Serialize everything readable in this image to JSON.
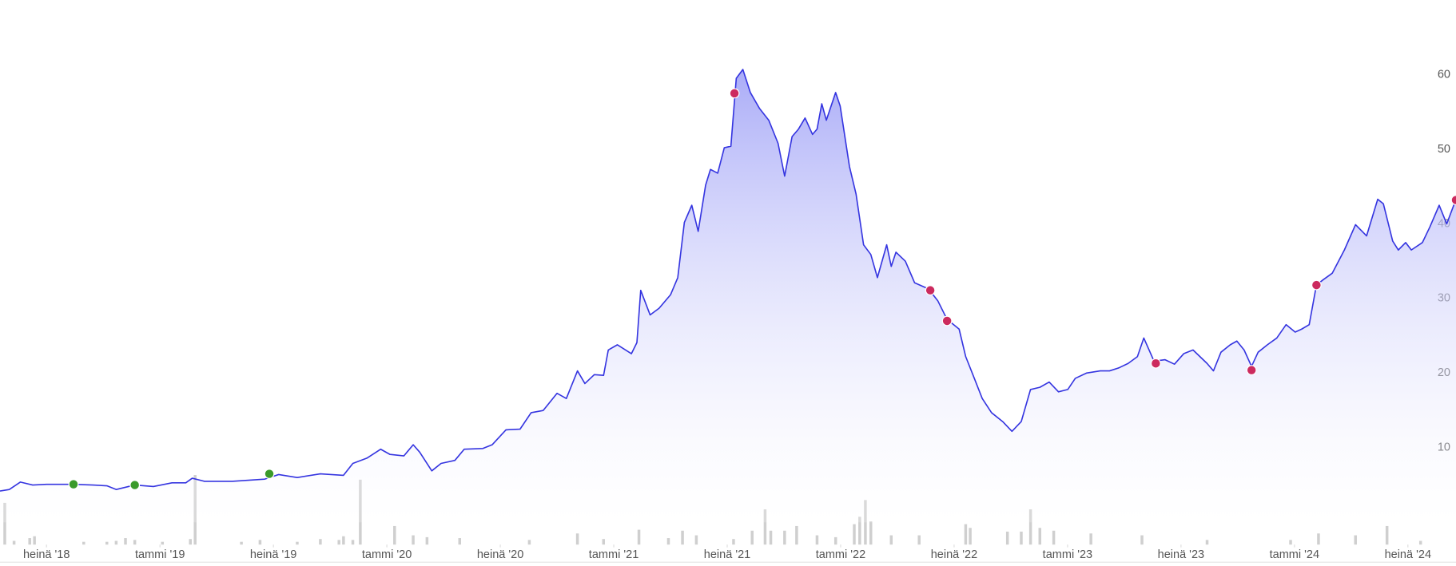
{
  "chart_data": [
    {
      "type": "line",
      "xlim": [
        2018.295,
        2024.712
      ],
      "ylim": [
        0,
        70
      ],
      "xticks": [
        {
          "value": 2018.5,
          "label": "heinä '18"
        },
        {
          "value": 2019.0,
          "label": "tammi '19"
        },
        {
          "value": 2019.5,
          "label": "heinä '19"
        },
        {
          "value": 2020.0,
          "label": "tammi '20"
        },
        {
          "value": 2020.5,
          "label": "heinä '20"
        },
        {
          "value": 2021.0,
          "label": "tammi '21"
        },
        {
          "value": 2021.5,
          "label": "heinä '21"
        },
        {
          "value": 2022.0,
          "label": "tammi '22"
        },
        {
          "value": 2022.5,
          "label": "heinä '22"
        },
        {
          "value": 2023.0,
          "label": "tammi '23"
        },
        {
          "value": 2023.5,
          "label": "heinä '23"
        },
        {
          "value": 2024.0,
          "label": "tammi '24"
        },
        {
          "value": 2024.5,
          "label": "heinä '24"
        }
      ],
      "yticks": [
        10,
        20,
        30,
        40,
        50,
        60
      ],
      "series": [
        {
          "color": "#3535e0",
          "x": [
            2018.295,
            2018.336,
            2018.385,
            2018.439,
            2018.5,
            2018.619,
            2018.705,
            2018.766,
            2018.807,
            2018.889,
            2018.971,
            2019.053,
            2019.114,
            2019.142,
            2019.196,
            2019.318,
            2019.462,
            2019.523,
            2019.605,
            2019.707,
            2019.809,
            2019.85,
            2019.912,
            2019.973,
            2020.014,
            2020.075,
            2020.116,
            2020.145,
            2020.198,
            2020.239,
            2020.3,
            2020.341,
            2020.423,
            2020.464,
            2020.525,
            2020.587,
            2020.636,
            2020.689,
            2020.75,
            2020.791,
            2020.84,
            2020.873,
            2020.914,
            2020.955,
            2020.976,
            2021.016,
            2021.078,
            2021.102,
            2021.119,
            2021.16,
            2021.2,
            2021.25,
            2021.282,
            2021.311,
            2021.344,
            2021.372,
            2021.405,
            2021.426,
            2021.458,
            2021.487,
            2021.516,
            2021.54,
            2021.569,
            2021.602,
            2021.642,
            2021.683,
            2021.724,
            2021.753,
            2021.786,
            2021.814,
            2021.843,
            2021.876,
            2021.896,
            2021.917,
            2021.937,
            2021.978,
            2021.998,
            2022.039,
            2022.068,
            2022.101,
            2022.133,
            2022.162,
            2022.203,
            2022.223,
            2022.244,
            2022.285,
            2022.326,
            2022.387,
            2022.428,
            2022.469,
            2022.522,
            2022.551,
            2022.584,
            2022.624,
            2022.665,
            2022.714,
            2022.755,
            2022.796,
            2022.837,
            2022.878,
            2022.919,
            2022.96,
            2023.001,
            2023.034,
            2023.083,
            2023.144,
            2023.185,
            2023.226,
            2023.267,
            2023.308,
            2023.336,
            2023.381,
            2023.43,
            2023.471,
            2023.512,
            2023.553,
            2023.615,
            2023.643,
            2023.676,
            2023.717,
            2023.746,
            2023.778,
            2023.811,
            2023.84,
            2023.881,
            2023.922,
            2023.963,
            2024.003,
            2024.032,
            2024.065,
            2024.097,
            2024.126,
            2024.167,
            2024.22,
            2024.269,
            2024.318,
            2024.367,
            2024.392,
            2024.433,
            2024.458,
            2024.49,
            2024.515,
            2024.564,
            2024.597,
            2024.638,
            2024.671,
            2024.712
          ],
          "values": [
            4.2,
            4.4,
            5.4,
            5.0,
            5.1,
            5.1,
            5.0,
            4.9,
            4.4,
            5.0,
            4.8,
            5.3,
            5.3,
            5.9,
            5.5,
            5.5,
            5.8,
            6.4,
            6.0,
            6.5,
            6.3,
            7.9,
            8.6,
            9.8,
            9.1,
            8.9,
            10.4,
            9.4,
            6.9,
            7.9,
            8.3,
            9.8,
            9.9,
            10.4,
            12.4,
            12.5,
            14.7,
            15.0,
            17.3,
            16.6,
            20.3,
            18.6,
            19.8,
            19.7,
            23.1,
            23.8,
            22.6,
            24.1,
            31.1,
            27.8,
            28.7,
            30.5,
            32.8,
            40.2,
            42.5,
            39.0,
            45.2,
            47.3,
            46.8,
            50.2,
            50.4,
            59.5,
            60.7,
            57.6,
            55.5,
            53.9,
            50.8,
            46.4,
            51.7,
            52.7,
            54.2,
            52.0,
            52.7,
            56.1,
            53.9,
            57.6,
            55.8,
            47.7,
            44.0,
            37.2,
            35.9,
            32.8,
            37.2,
            34.3,
            36.2,
            35.0,
            32.1,
            31.3,
            29.7,
            27.2,
            25.9,
            22.2,
            19.7,
            16.6,
            14.7,
            13.5,
            12.2,
            13.5,
            17.8,
            18.1,
            18.8,
            17.5,
            17.8,
            19.3,
            20.0,
            20.3,
            20.3,
            20.7,
            21.3,
            22.2,
            24.7,
            21.6,
            21.8,
            21.2,
            22.6,
            23.1,
            21.3,
            20.3,
            22.8,
            23.8,
            24.3,
            23.1,
            20.9,
            22.8,
            23.8,
            24.7,
            26.5,
            25.5,
            25.9,
            26.5,
            31.8,
            32.5,
            33.4,
            36.5,
            39.9,
            38.4,
            43.3,
            42.7,
            37.7,
            36.5,
            37.5,
            36.5,
            37.5,
            39.6,
            42.5,
            40.0,
            43.3
          ]
        }
      ]
    },
    {
      "type": "scatter",
      "xlim": [
        2018.295,
        2024.712
      ],
      "ylim": [
        0,
        70
      ],
      "series": [
        {
          "color": "#3a9a2a",
          "x": [
            2018.619,
            2018.889,
            2019.482
          ],
          "values": [
            5.1,
            5.0,
            6.5
          ]
        },
        {
          "color": "#cc2a5e",
          "x": [
            2021.532,
            2022.395,
            2022.469,
            2023.389,
            2023.811,
            2024.097,
            2024.712
          ],
          "values": [
            57.5,
            31.1,
            27.0,
            21.3,
            20.4,
            31.8,
            43.2
          ]
        }
      ]
    },
    {
      "type": "bar",
      "xlim": [
        2018.295,
        2024.712
      ],
      "ylim": [
        0,
        80
      ],
      "color": "#cfcfcf",
      "x": [
        2018.316,
        2018.357,
        2018.426,
        2018.447,
        2018.664,
        2018.766,
        2018.807,
        2018.848,
        2018.889,
        2019.011,
        2019.134,
        2019.155,
        2019.359,
        2019.441,
        2019.605,
        2019.707,
        2019.789,
        2019.809,
        2019.85,
        2019.883,
        2020.034,
        2020.116,
        2020.177,
        2020.321,
        2020.628,
        2020.84,
        2020.955,
        2021.111,
        2021.241,
        2021.303,
        2021.364,
        2021.528,
        2021.61,
        2021.667,
        2021.692,
        2021.753,
        2021.806,
        2021.896,
        2021.978,
        2022.06,
        2022.084,
        2022.109,
        2022.133,
        2022.223,
        2022.346,
        2022.551,
        2022.571,
        2022.735,
        2022.796,
        2022.837,
        2022.878,
        2022.939,
        2023.103,
        2023.328,
        2023.615,
        2023.983,
        2024.106,
        2024.269,
        2024.408,
        2024.556
      ],
      "values": [
        45,
        4,
        7,
        9,
        3,
        3,
        4,
        7,
        5,
        3,
        6,
        75,
        3,
        5,
        3,
        6,
        5,
        9,
        5,
        70,
        20,
        10,
        8,
        7,
        5,
        12,
        6,
        16,
        7,
        15,
        10,
        6,
        15,
        38,
        15,
        15,
        20,
        10,
        8,
        22,
        30,
        48,
        25,
        10,
        10,
        22,
        18,
        14,
        14,
        38,
        18,
        15,
        12,
        10,
        5,
        5,
        12,
        10,
        20,
        4
      ]
    }
  ]
}
